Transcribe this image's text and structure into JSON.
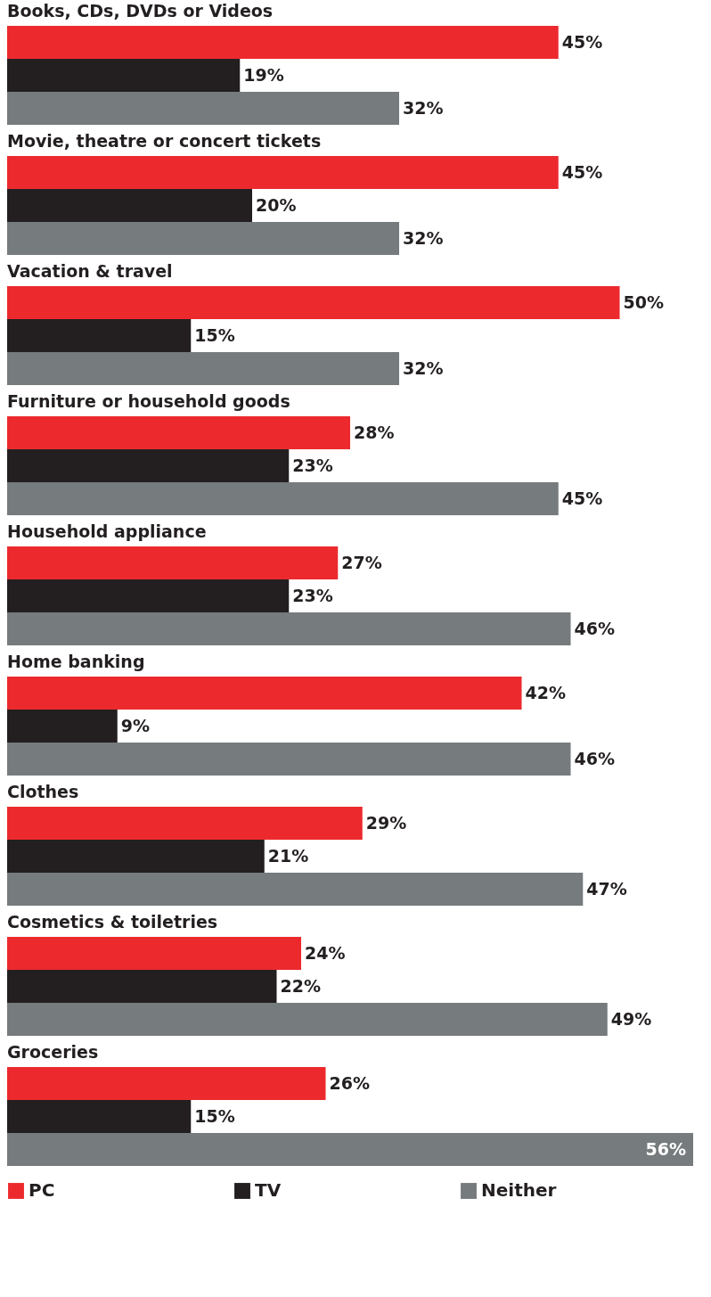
{
  "chart_data": {
    "type": "bar",
    "orientation": "horizontal",
    "categories": [
      "Books, CDs, DVDs or Videos",
      "Movie, theatre or concert tickets",
      "Vacation & travel",
      "Furniture or household goods",
      "Household appliance",
      "Home banking",
      "Clothes",
      "Cosmetics & toiletries",
      "Groceries"
    ],
    "series": [
      {
        "name": "PC",
        "color": "#ec2a2e",
        "values": [
          45,
          45,
          50,
          28,
          27,
          42,
          29,
          24,
          26
        ],
        "value_labels": [
          "45%",
          "45%",
          "50%",
          "28%",
          "27%",
          "42%",
          "29%",
          "24%",
          "26%"
        ]
      },
      {
        "name": "TV",
        "color": "#231f20",
        "values": [
          19,
          20,
          15,
          23,
          23,
          9,
          21,
          22,
          15
        ],
        "value_labels": [
          "19%",
          "20%",
          "15%",
          "23%",
          "23%",
          "9%",
          "21%",
          "22%",
          "15%"
        ]
      },
      {
        "name": "Neither",
        "color": "#767b7d",
        "values": [
          32,
          32,
          32,
          45,
          46,
          46,
          47,
          49,
          56
        ],
        "value_labels": [
          "32%",
          "32%",
          "32%",
          "45%",
          "46%",
          "46%",
          "47%",
          "49%",
          "56%"
        ]
      }
    ],
    "legend": "bottom"
  }
}
